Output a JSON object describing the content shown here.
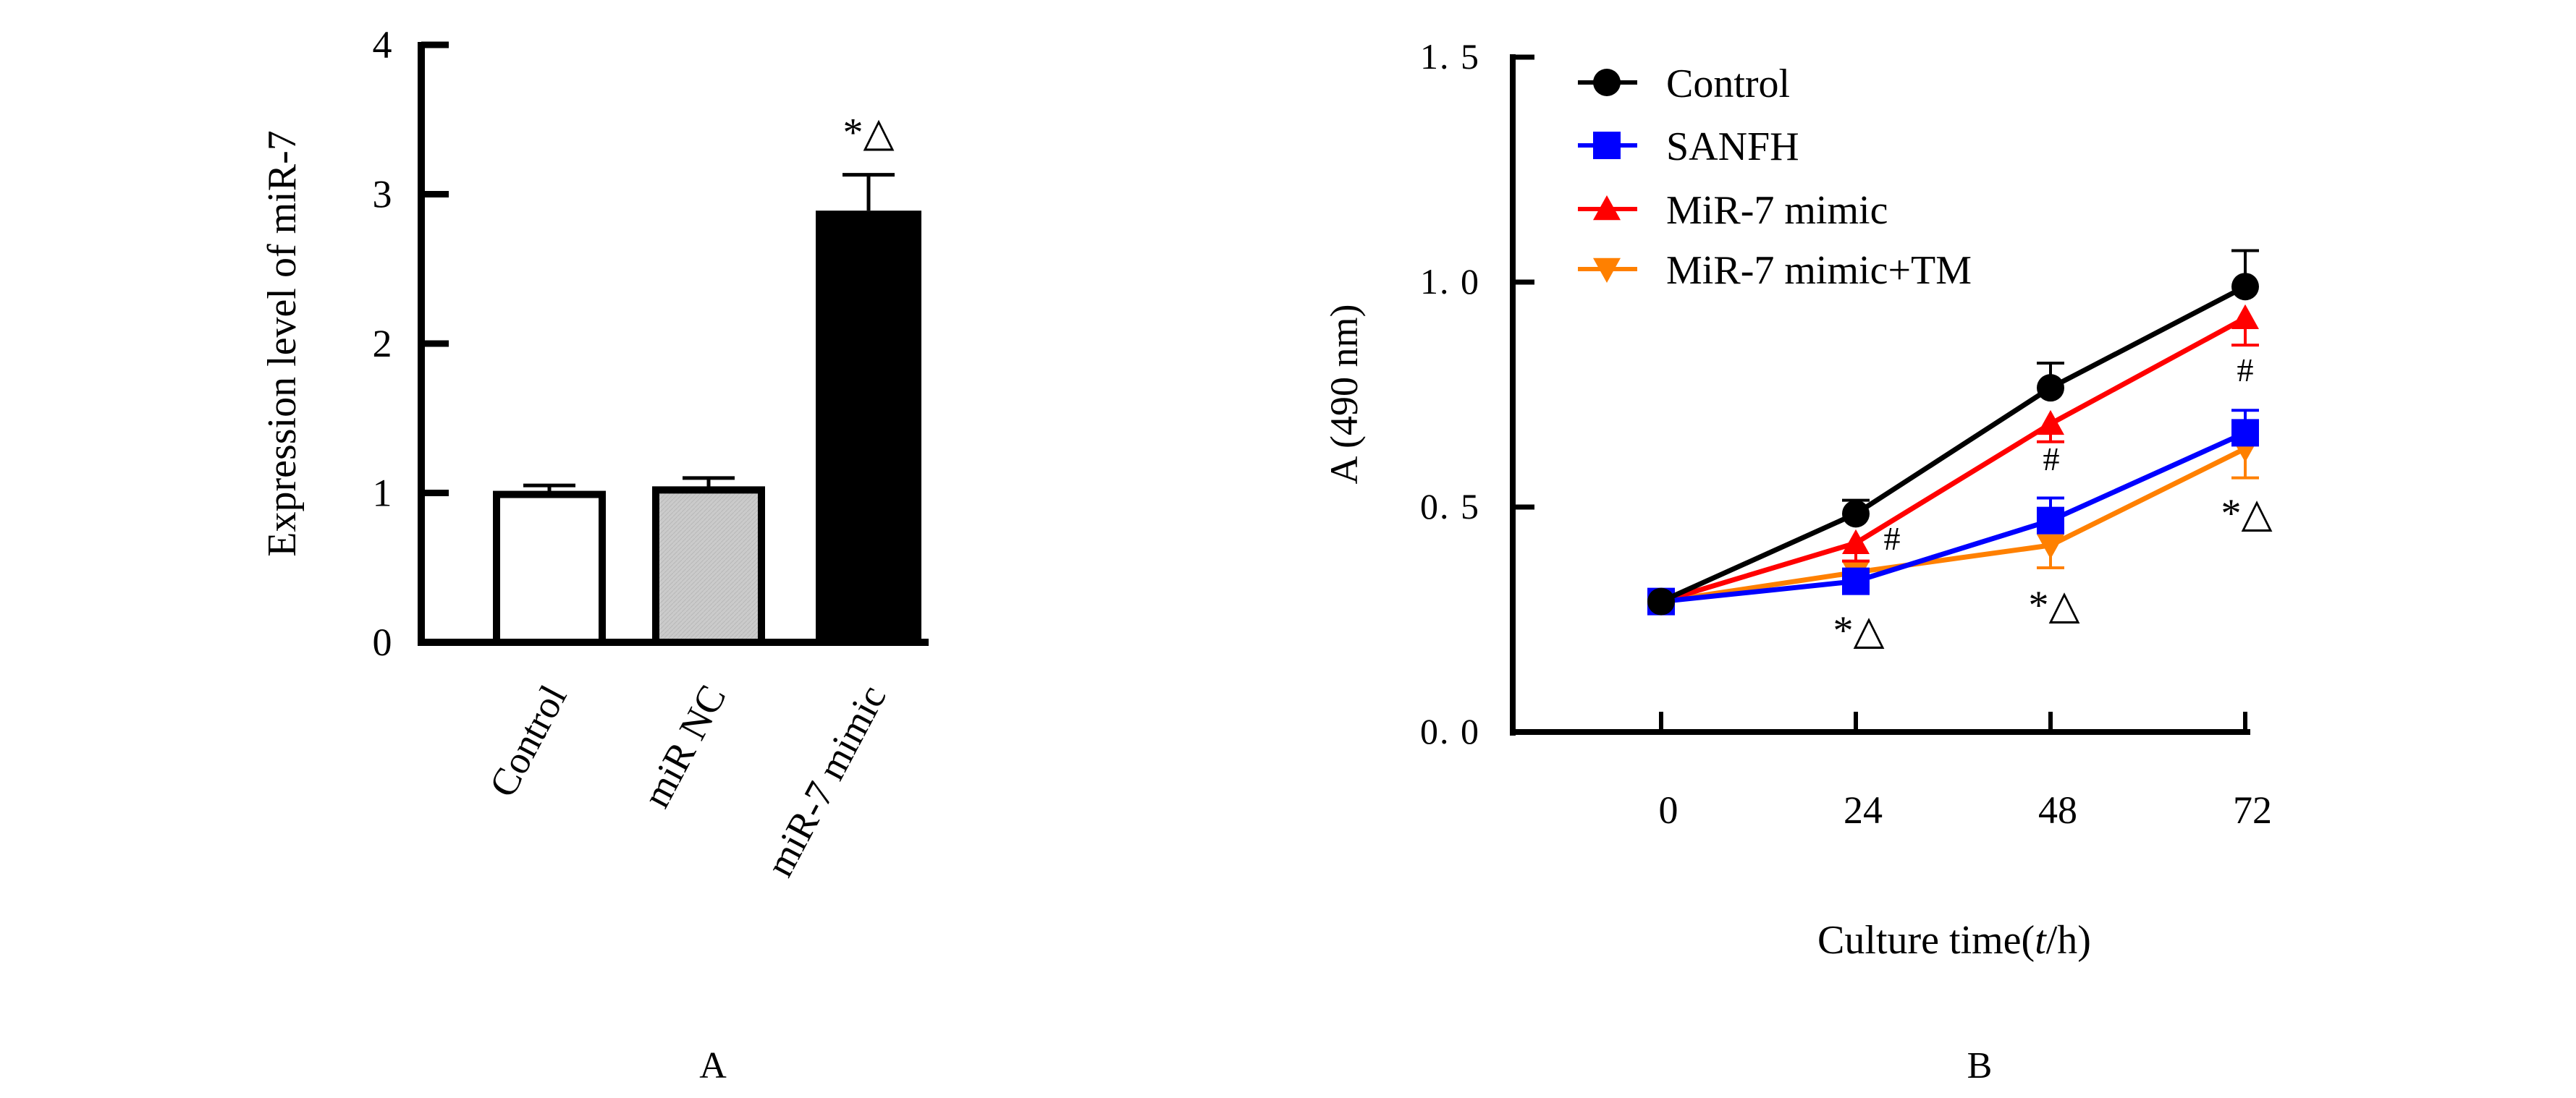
{
  "chart_data": [
    {
      "panel_label": "A",
      "type": "bar",
      "title": "",
      "xlabel": "",
      "ylabel": "Expression level of miR-7",
      "ylim": [
        0,
        4
      ],
      "yticks": [
        "0",
        "1",
        "2",
        "3",
        "4"
      ],
      "grid": false,
      "categories": [
        "Control",
        "miR NC",
        "miR-7 mimic"
      ],
      "values": [
        0.99,
        1.02,
        2.89
      ],
      "errors": [
        0.06,
        0.08,
        0.24
      ],
      "bar_fills": [
        "#ffffff",
        "#cccccc",
        "#000000"
      ],
      "annotations": [
        "",
        "",
        "*△"
      ]
    },
    {
      "panel_label": "B",
      "type": "line",
      "title": "",
      "xlabel_main": "Culture time(",
      "xlabel_italic": "t",
      "xlabel_tail": "/h)",
      "ylabel": "A (490 nm)",
      "x": [
        0,
        24,
        48,
        72
      ],
      "xticks": [
        "0",
        "24",
        "48",
        "72"
      ],
      "xlim": [
        -17,
        72
      ],
      "ylim": [
        0,
        1.5
      ],
      "yticks": [
        "0. 0",
        "0. 5",
        "1. 0",
        "1. 5"
      ],
      "ytick_values": [
        0,
        0.5,
        1.0,
        1.5
      ],
      "grid": false,
      "legend_position": "top-left",
      "series": [
        {
          "name": "Control",
          "color": "#000000",
          "marker": "circle",
          "values": [
            0.29,
            0.485,
            0.765,
            0.99
          ],
          "errors": [
            0.01,
            0.03,
            0.055,
            0.08
          ]
        },
        {
          "name": "SANFH",
          "color": "#0000ff",
          "marker": "square",
          "values": [
            0.29,
            0.335,
            0.47,
            0.665
          ],
          "errors": [
            0.01,
            0.015,
            0.05,
            0.05
          ]
        },
        {
          "name": "MiR-7 mimic",
          "color": "#ff0000",
          "marker": "triangle-up",
          "values": [
            0.29,
            0.42,
            0.685,
            0.92
          ],
          "errors": [
            0.01,
            0.04,
            0.04,
            0.06
          ]
        },
        {
          "name": "MiR-7 mimic+TM",
          "color": "#ff8000",
          "marker": "triangle-down",
          "values": [
            0.29,
            0.355,
            0.415,
            0.63
          ],
          "errors": [
            0.01,
            0.02,
            0.05,
            0.065
          ]
        }
      ],
      "annotations": [
        {
          "x": 24,
          "text": "#",
          "pos": "right"
        },
        {
          "x": 24,
          "text": "*△",
          "pos": "below"
        },
        {
          "x": 48,
          "text": "#",
          "pos": "mid"
        },
        {
          "x": 48,
          "text": "*△",
          "pos": "below"
        },
        {
          "x": 72,
          "text": "#",
          "pos": "mid"
        },
        {
          "x": 72,
          "text": "*△",
          "pos": "below"
        }
      ]
    }
  ]
}
